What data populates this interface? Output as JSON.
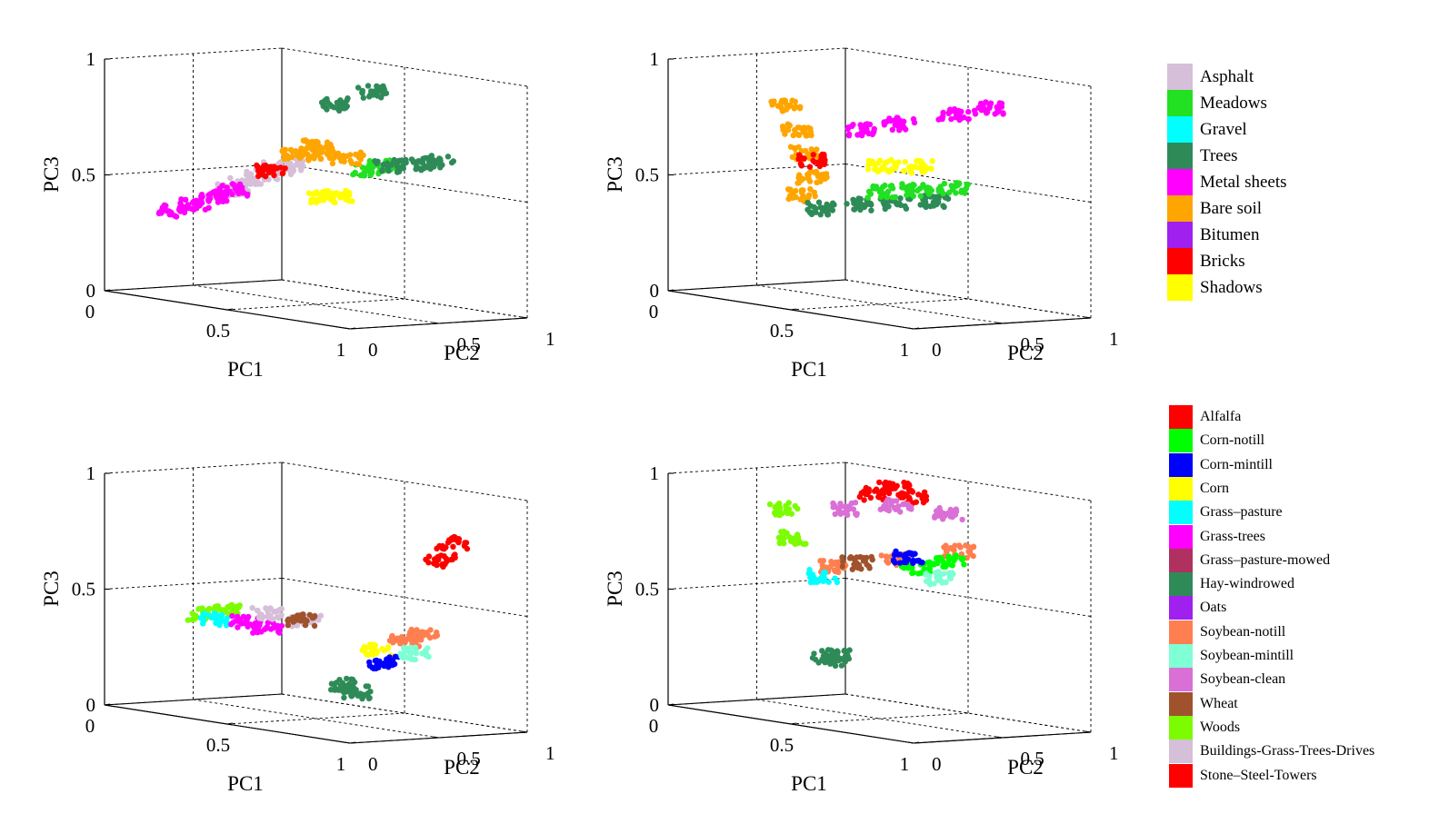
{
  "chart_data": [
    {
      "type": "scatter",
      "title": "",
      "xlabel": "PC1",
      "ylabel": "PC2",
      "zlabel": "PC3",
      "xlim": [
        0,
        1
      ],
      "ylim": [
        0,
        1
      ],
      "zlim": [
        0,
        1
      ],
      "x_ticks": [
        "0",
        "0.5",
        "1"
      ],
      "y_ticks": [
        "0",
        "0.5",
        "1"
      ],
      "z_ticks": [
        "0",
        "0.5",
        "1"
      ],
      "grid": true,
      "legend": "right",
      "series": [
        {
          "name": "Asphalt",
          "color": "#d6bfd8",
          "points": [
            [
              0.28,
              0.5,
              0.52
            ],
            [
              0.33,
              0.52,
              0.56
            ],
            [
              0.25,
              0.45,
              0.48
            ],
            [
              0.36,
              0.55,
              0.58
            ],
            [
              0.22,
              0.42,
              0.45
            ]
          ]
        },
        {
          "name": "Meadows",
          "color": "#22e022",
          "points": [
            [
              0.55,
              0.72,
              0.58
            ],
            [
              0.6,
              0.75,
              0.6
            ]
          ]
        },
        {
          "name": "Trees",
          "color": "#2e8b57",
          "points": [
            [
              0.6,
              0.78,
              0.6
            ],
            [
              0.68,
              0.82,
              0.62
            ],
            [
              0.75,
              0.85,
              0.64
            ],
            [
              0.25,
              0.95,
              0.8
            ],
            [
              0.4,
              0.95,
              0.88
            ]
          ]
        },
        {
          "name": "Metal sheets",
          "color": "#ff00ff",
          "points": [
            [
              0.1,
              0.25,
              0.35
            ],
            [
              0.15,
              0.3,
              0.38
            ],
            [
              0.2,
              0.35,
              0.42
            ],
            [
              0.25,
              0.38,
              0.46
            ]
          ]
        },
        {
          "name": "Bare soil",
          "color": "#ffa500",
          "points": [
            [
              0.35,
              0.58,
              0.62
            ],
            [
              0.45,
              0.62,
              0.64
            ],
            [
              0.4,
              0.65,
              0.66
            ],
            [
              0.5,
              0.68,
              0.62
            ]
          ]
        },
        {
          "name": "Bricks",
          "color": "#ff0000",
          "points": [
            [
              0.32,
              0.5,
              0.55
            ]
          ]
        },
        {
          "name": "Shadows",
          "color": "#ffff00",
          "points": [
            [
              0.45,
              0.6,
              0.45
            ],
            [
              0.5,
              0.62,
              0.46
            ]
          ]
        }
      ]
    },
    {
      "type": "scatter",
      "title": "",
      "xlabel": "PC1",
      "ylabel": "PC2",
      "zlabel": "PC3",
      "xlim": [
        0,
        1
      ],
      "ylim": [
        0,
        1
      ],
      "zlim": [
        0,
        1
      ],
      "x_ticks": [
        "0",
        "0.5",
        "1"
      ],
      "y_ticks": [
        "0",
        "0.5",
        "1"
      ],
      "z_ticks": [
        "0",
        "0.5",
        "1"
      ],
      "grid": true,
      "legend": "right",
      "series": [
        {
          "name": "Bare soil",
          "color": "#ffa500",
          "points": [
            [
              0.05,
              0.6,
              0.78
            ],
            [
              0.08,
              0.62,
              0.68
            ],
            [
              0.1,
              0.63,
              0.58
            ],
            [
              0.12,
              0.65,
              0.48
            ],
            [
              0.1,
              0.62,
              0.4
            ]
          ]
        },
        {
          "name": "Trees",
          "color": "#2e8b57",
          "points": [
            [
              0.15,
              0.65,
              0.35
            ],
            [
              0.25,
              0.72,
              0.38
            ],
            [
              0.35,
              0.8,
              0.4
            ],
            [
              0.45,
              0.88,
              0.42
            ]
          ]
        },
        {
          "name": "Meadows",
          "color": "#22e022",
          "points": [
            [
              0.3,
              0.78,
              0.44
            ],
            [
              0.4,
              0.85,
              0.46
            ],
            [
              0.5,
              0.92,
              0.48
            ]
          ]
        },
        {
          "name": "Metal sheets",
          "color": "#ff00ff",
          "points": [
            [
              0.25,
              0.75,
              0.7
            ],
            [
              0.35,
              0.82,
              0.74
            ],
            [
              0.5,
              0.92,
              0.8
            ],
            [
              0.6,
              0.98,
              0.84
            ]
          ]
        },
        {
          "name": "Shadows",
          "color": "#ffff00",
          "points": [
            [
              0.3,
              0.8,
              0.55
            ],
            [
              0.4,
              0.86,
              0.56
            ]
          ]
        },
        {
          "name": "Bricks",
          "color": "#ff0000",
          "points": [
            [
              0.12,
              0.65,
              0.55
            ]
          ]
        }
      ]
    },
    {
      "type": "scatter",
      "title": "",
      "xlabel": "PC1",
      "ylabel": "PC2",
      "zlabel": "PC3",
      "xlim": [
        0,
        1
      ],
      "ylim": [
        0,
        1
      ],
      "zlim": [
        0,
        1
      ],
      "x_ticks": [
        "0",
        "0.5",
        "1"
      ],
      "y_ticks": [
        "0",
        "0.5",
        "1"
      ],
      "z_ticks": [
        "0",
        "0.5",
        "1"
      ],
      "grid": true,
      "legend": "right",
      "series": [
        {
          "name": "Woods",
          "color": "#7cfc00",
          "points": [
            [
              0.15,
              0.35,
              0.4
            ],
            [
              0.2,
              0.4,
              0.42
            ]
          ]
        },
        {
          "name": "Grass–pasture",
          "color": "#00ffff",
          "points": [
            [
              0.18,
              0.38,
              0.38
            ]
          ]
        },
        {
          "name": "Grass-trees",
          "color": "#ff00ff",
          "points": [
            [
              0.25,
              0.45,
              0.38
            ],
            [
              0.3,
              0.5,
              0.36
            ]
          ]
        },
        {
          "name": "Buildings-Grass-Trees-Drives",
          "color": "#d6bfd8",
          "points": [
            [
              0.3,
              0.5,
              0.42
            ],
            [
              0.4,
              0.58,
              0.4
            ]
          ]
        },
        {
          "name": "Wheat",
          "color": "#a0522d",
          "points": [
            [
              0.38,
              0.58,
              0.4
            ]
          ]
        },
        {
          "name": "Hay-windrowed",
          "color": "#2e8b57",
          "points": [
            [
              0.55,
              0.6,
              0.15
            ],
            [
              0.58,
              0.62,
              0.12
            ]
          ]
        },
        {
          "name": "Soybean-notill",
          "color": "#ff7f50",
          "points": [
            [
              0.68,
              0.75,
              0.35
            ],
            [
              0.72,
              0.8,
              0.38
            ]
          ]
        },
        {
          "name": "Alfalfa",
          "color": "#ff0000",
          "points": [
            [
              0.72,
              0.9,
              0.7
            ],
            [
              0.75,
              0.92,
              0.78
            ]
          ]
        },
        {
          "name": "Corn",
          "color": "#ffff00",
          "points": [
            [
              0.6,
              0.7,
              0.3
            ]
          ]
        },
        {
          "name": "Corn-mintill",
          "color": "#0000ff",
          "points": [
            [
              0.62,
              0.72,
              0.25
            ]
          ]
        },
        {
          "name": "Soybean-mintill",
          "color": "#7fffd4",
          "points": [
            [
              0.7,
              0.78,
              0.3
            ]
          ]
        }
      ]
    },
    {
      "type": "scatter",
      "title": "",
      "xlabel": "PC1",
      "ylabel": "PC2",
      "zlabel": "PC3",
      "xlim": [
        0,
        1
      ],
      "ylim": [
        0,
        1
      ],
      "zlim": [
        0,
        1
      ],
      "x_ticks": [
        "0",
        "0.5",
        "1"
      ],
      "y_ticks": [
        "0",
        "0.5",
        "1"
      ],
      "z_ticks": [
        "0",
        "0.5",
        "1"
      ],
      "grid": true,
      "legend": "right",
      "series": [
        {
          "name": "Alfalfa",
          "color": "#ff0000",
          "points": [
            [
              0.28,
              0.78,
              0.92
            ],
            [
              0.33,
              0.82,
              0.95
            ],
            [
              0.38,
              0.85,
              0.92
            ]
          ]
        },
        {
          "name": "Soybean-clean",
          "color": "#da70d6",
          "points": [
            [
              0.22,
              0.7,
              0.85
            ],
            [
              0.35,
              0.8,
              0.88
            ],
            [
              0.48,
              0.92,
              0.86
            ]
          ]
        },
        {
          "name": "Soybean-notill",
          "color": "#ff7f50",
          "points": [
            [
              0.2,
              0.65,
              0.6
            ],
            [
              0.35,
              0.8,
              0.65
            ],
            [
              0.5,
              0.95,
              0.7
            ]
          ]
        },
        {
          "name": "Meadows",
          "color": "#22e022",
          "points": []
        },
        {
          "name": "Corn-notill",
          "color": "#00ff00",
          "points": [
            [
              0.4,
              0.85,
              0.62
            ],
            [
              0.48,
              0.92,
              0.66
            ]
          ]
        },
        {
          "name": "Woods",
          "color": "#7cfc00",
          "points": [
            [
              0.02,
              0.62,
              0.82
            ],
            [
              0.05,
              0.64,
              0.7
            ]
          ]
        },
        {
          "name": "Hay-windrowed",
          "color": "#2e8b57",
          "points": [
            [
              0.2,
              0.62,
              0.2
            ],
            [
              0.22,
              0.64,
              0.22
            ]
          ]
        },
        {
          "name": "Soybean-mintill",
          "color": "#7fffd4",
          "points": [
            [
              0.45,
              0.9,
              0.58
            ]
          ]
        },
        {
          "name": "Corn-mintill",
          "color": "#0000ff",
          "points": [
            [
              0.38,
              0.82,
              0.66
            ]
          ]
        },
        {
          "name": "Wheat",
          "color": "#a0522d",
          "points": [
            [
              0.25,
              0.72,
              0.62
            ]
          ]
        },
        {
          "name": "Grass–pasture",
          "color": "#00ffff",
          "points": [
            [
              0.15,
              0.66,
              0.55
            ]
          ]
        }
      ]
    }
  ],
  "legends": {
    "pavia": [
      {
        "label": "Asphalt",
        "color": "#d6bfd8"
      },
      {
        "label": "Meadows",
        "color": "#22e022"
      },
      {
        "label": "Gravel",
        "color": "#00ffff"
      },
      {
        "label": "Trees",
        "color": "#2e8b57"
      },
      {
        "label": "Metal sheets",
        "color": "#ff00ff"
      },
      {
        "label": "Bare soil",
        "color": "#ffa500"
      },
      {
        "label": "Bitumen",
        "color": "#a020f0"
      },
      {
        "label": "Bricks",
        "color": "#ff0000"
      },
      {
        "label": "Shadows",
        "color": "#ffff00"
      }
    ],
    "indian": [
      {
        "label": "Alfalfa",
        "color": "#ff0000"
      },
      {
        "label": "Corn-notill",
        "color": "#00ff00"
      },
      {
        "label": "Corn-mintill",
        "color": "#0000ff"
      },
      {
        "label": "Corn",
        "color": "#ffff00"
      },
      {
        "label": "Grass–pasture",
        "color": "#00ffff"
      },
      {
        "label": "Grass-trees",
        "color": "#ff00ff"
      },
      {
        "label": "Grass–pasture-mowed",
        "color": "#b03060"
      },
      {
        "label": "Hay-windrowed",
        "color": "#2e8b57"
      },
      {
        "label": "Oats",
        "color": "#a020f0"
      },
      {
        "label": "Soybean-notill",
        "color": "#ff7f50"
      },
      {
        "label": "Soybean-mintill",
        "color": "#7fffd4"
      },
      {
        "label": "Soybean-clean",
        "color": "#da70d6"
      },
      {
        "label": "Wheat",
        "color": "#a0522d"
      },
      {
        "label": "Woods",
        "color": "#7cfc00"
      },
      {
        "label": "Buildings-Grass-Trees-Drives",
        "color": "#d6bfd8"
      },
      {
        "label": "Stone–Steel-Towers",
        "color": "#ff0000"
      }
    ]
  }
}
